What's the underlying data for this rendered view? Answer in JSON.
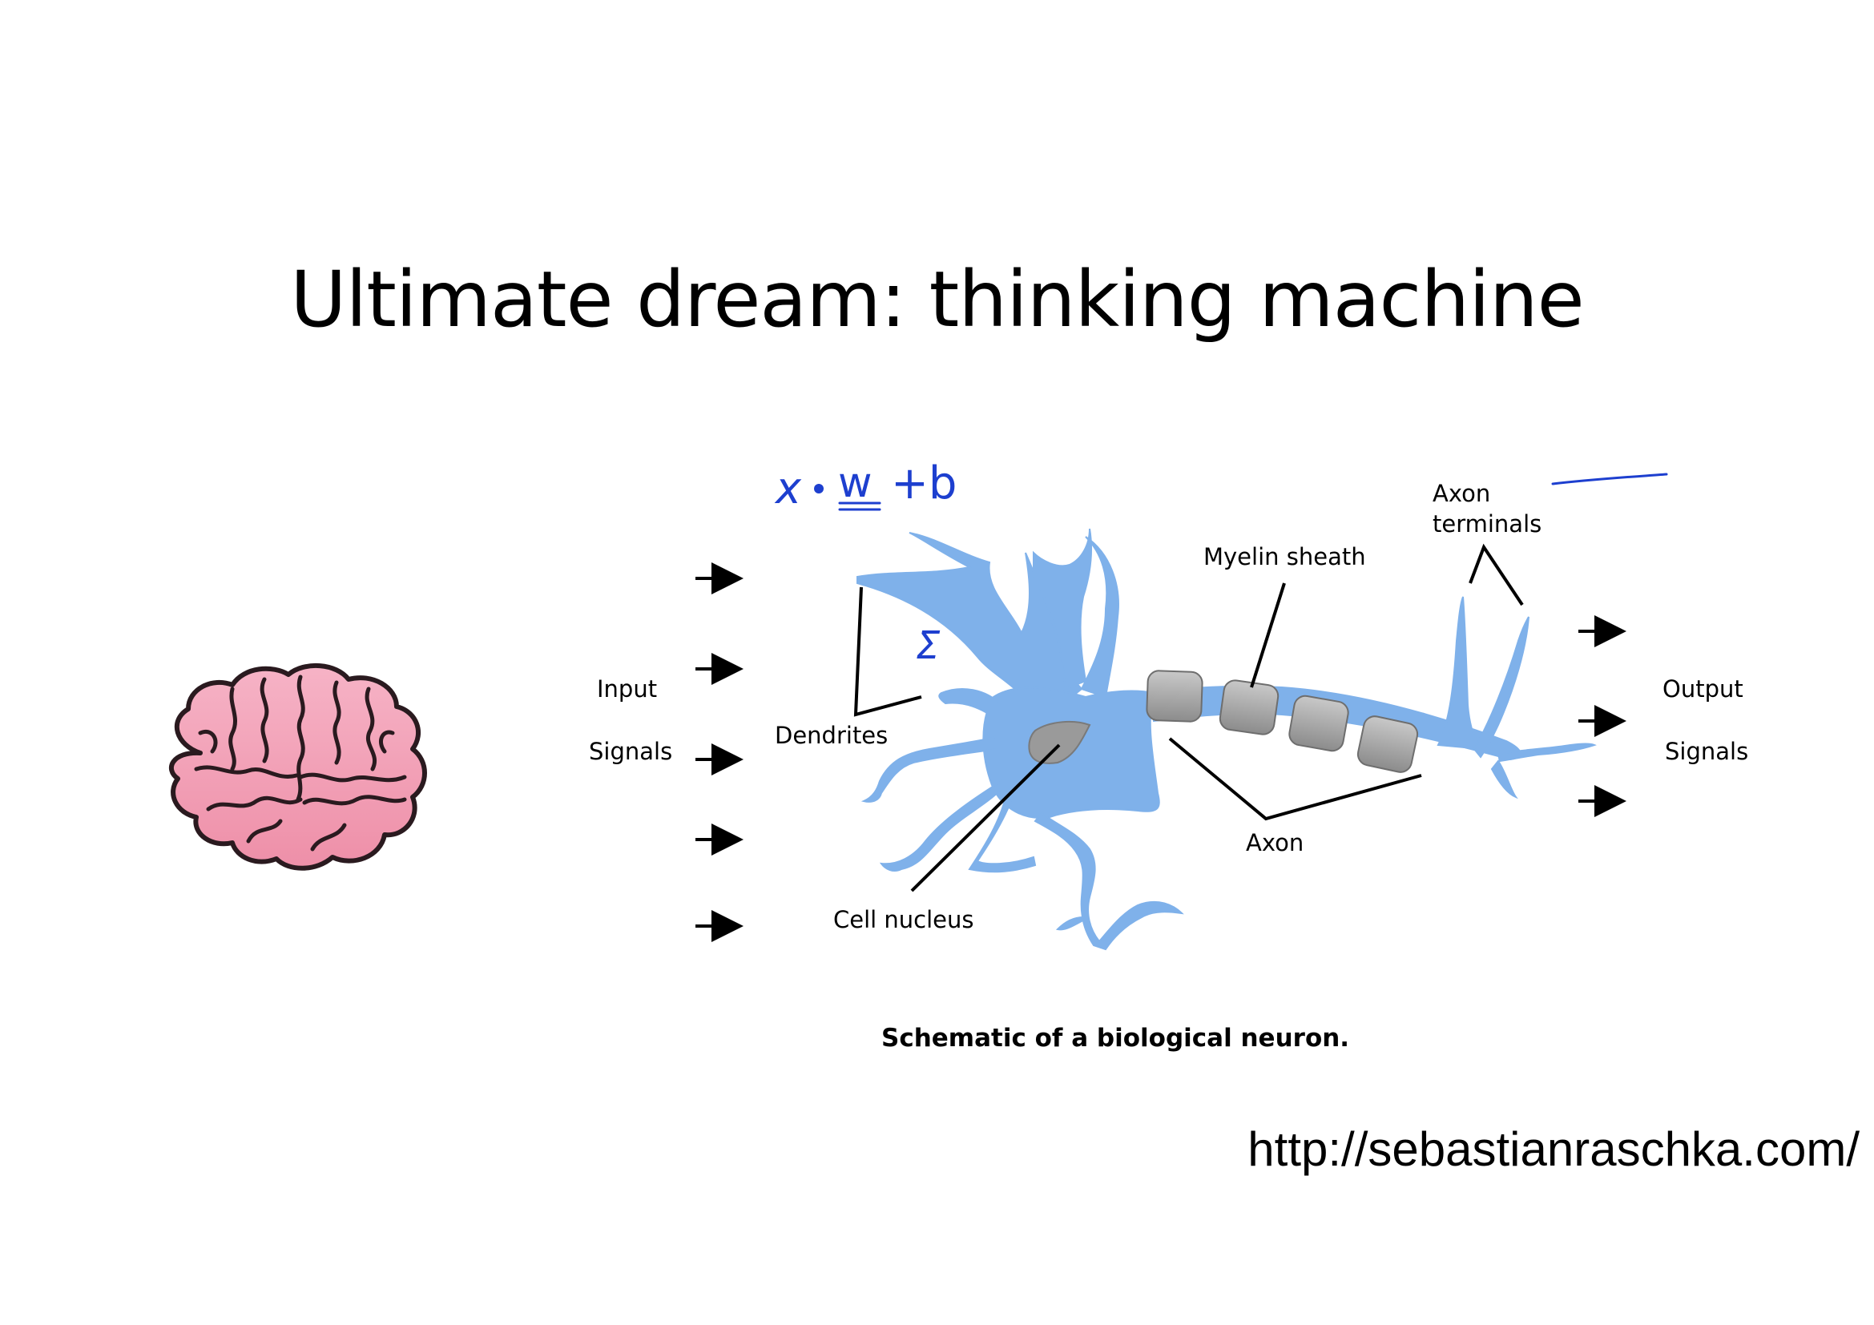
{
  "slide": {
    "title": "Ultimate dream: thinking machine",
    "source_url": "http://sebastianraschka.com/"
  },
  "diagram": {
    "caption": "Schematic of a biological neuron.",
    "labels": {
      "input_line1": "Input",
      "input_line2": "Signals",
      "output_line1": "Output",
      "output_line2": "Signals",
      "dendrites": "Dendrites",
      "cell_nucleus": "Cell nucleus",
      "myelin_sheath": "Myelin sheath",
      "axon": "Axon",
      "axon_terminals_line1": "Axon",
      "axon_terminals_line2": "terminals"
    },
    "annotations": {
      "formula_x": "x",
      "formula_w": "w",
      "formula_b": "+b",
      "sum_symbol": "Σ"
    }
  },
  "colors": {
    "neuron_fill": "#7FB1EA",
    "myelin_fill": "#9E9E9E",
    "nucleus_fill": "#9A9A9A",
    "brain_fill": "#F4A6BD",
    "brain_outline": "#2A1A1F",
    "annotation_ink": "#1D3FCF"
  },
  "icons": [
    "brain-icon",
    "neuron-illustration",
    "arrow-right-icon"
  ]
}
